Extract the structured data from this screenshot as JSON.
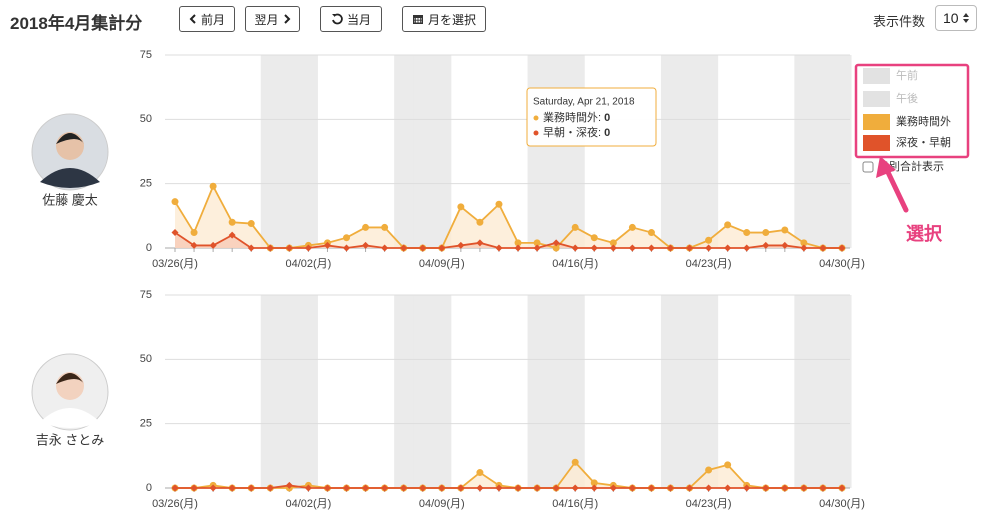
{
  "header": {
    "title": "2018年4月集計分",
    "buttons": [
      "前月",
      "翌月",
      "当月",
      "月を選択"
    ],
    "page_size_label": "表示件数",
    "page_size": 10
  },
  "legend": [
    {
      "name": "午前",
      "color": "#e2e2e2"
    },
    {
      "name": "午後",
      "color": "#e2e2e2"
    },
    {
      "name": "業務時間外",
      "color": "#f0ad3c"
    },
    {
      "name": "深夜・早朝",
      "color": "#e0532a"
    }
  ],
  "checkbox_label": "日別合計表示",
  "annotation": "選択",
  "people": [
    "佐藤 慶太",
    "吉永 さとみ"
  ],
  "tooltip": {
    "title": "Saturday, Apr 21, 2018",
    "rows": [
      {
        "label": "業務時間外: ",
        "value": 0
      },
      {
        "label": "早朝・深夜: ",
        "value": 0
      }
    ]
  },
  "chart_data": [
    {
      "type": "area",
      "categories": [
        "03/26(月)",
        null,
        null,
        null,
        null,
        null,
        null,
        "04/02(月)",
        null,
        null,
        null,
        null,
        null,
        null,
        "04/09(月)",
        null,
        null,
        null,
        null,
        null,
        null,
        "04/16(月)",
        null,
        null,
        null,
        null,
        null,
        null,
        "04/23(月)",
        null,
        null,
        null,
        null,
        null,
        null,
        "04/30(月)"
      ],
      "series": [
        {
          "color": "#f0ad3c",
          "values": [
            18,
            6,
            24,
            10,
            9.5,
            0,
            0,
            1,
            2,
            4,
            8,
            8,
            0,
            0,
            0,
            16,
            10,
            17,
            2,
            2,
            0,
            8,
            4,
            2,
            8,
            6,
            0,
            0,
            3,
            9,
            6,
            6,
            7,
            2,
            0,
            0
          ]
        },
        {
          "color": "#e0532a",
          "values": [
            6,
            1,
            1,
            5,
            0,
            0,
            0,
            0,
            1,
            0,
            1,
            0,
            0,
            0,
            0,
            1,
            2,
            0,
            0,
            0,
            2,
            0,
            0,
            0,
            0,
            0,
            0,
            0,
            0,
            0,
            0,
            1,
            1,
            0,
            0,
            0
          ]
        }
      ],
      "ylim": [
        0,
        75
      ],
      "yticks": [
        0,
        25,
        50,
        75
      ],
      "grid": true
    },
    {
      "type": "area",
      "categories": [
        "03/26(月)",
        null,
        null,
        null,
        null,
        null,
        null,
        "04/02(月)",
        null,
        null,
        null,
        null,
        null,
        null,
        "04/09(月)",
        null,
        null,
        null,
        null,
        null,
        null,
        "04/16(月)",
        null,
        null,
        null,
        null,
        null,
        null,
        "04/23(月)",
        null,
        null,
        null,
        null,
        null,
        null,
        "04/30(月)"
      ],
      "series": [
        {
          "color": "#f0ad3c",
          "values": [
            0,
            0,
            1,
            0,
            0,
            0,
            0,
            1,
            0,
            0,
            0,
            0,
            0,
            0,
            0,
            0,
            6,
            1,
            0,
            0,
            0,
            10,
            2,
            1,
            0,
            0,
            0,
            0,
            7,
            9,
            1,
            0,
            0,
            0,
            0,
            0
          ]
        },
        {
          "color": "#e0532a",
          "values": [
            0,
            0,
            0,
            0,
            0,
            0,
            1,
            0,
            0,
            0,
            0,
            0,
            0,
            0,
            0,
            0,
            0,
            0,
            0,
            0,
            0,
            0,
            0,
            0,
            0,
            0,
            0,
            0,
            0,
            0,
            0,
            0,
            0,
            0,
            0,
            0
          ]
        }
      ],
      "ylim": [
        0,
        75
      ],
      "yticks": [
        0,
        25,
        50,
        75
      ],
      "grid": true
    }
  ]
}
